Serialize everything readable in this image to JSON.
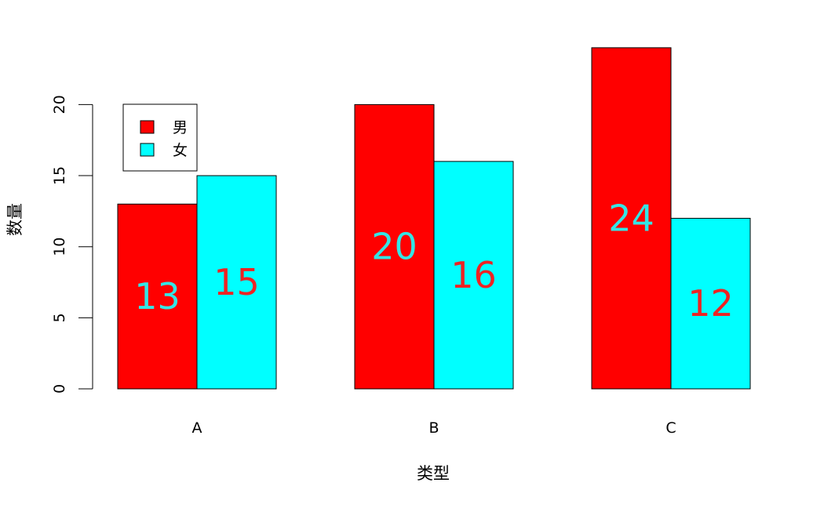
{
  "chart_data": {
    "type": "bar",
    "categories": [
      "A",
      "B",
      "C"
    ],
    "series": [
      {
        "name": "男",
        "values": [
          13,
          20,
          24
        ],
        "color": "#ff0000",
        "label_color": "#33e6e6"
      },
      {
        "name": "女",
        "values": [
          15,
          16,
          12
        ],
        "color": "#00ffff",
        "label_color": "#ee2222"
      }
    ],
    "title": "",
    "xlabel": "类型",
    "ylabel": "数量",
    "yticks": [
      0,
      5,
      10,
      15,
      20
    ],
    "ylim": [
      0,
      24
    ],
    "grid": false,
    "legend": "top-left"
  }
}
